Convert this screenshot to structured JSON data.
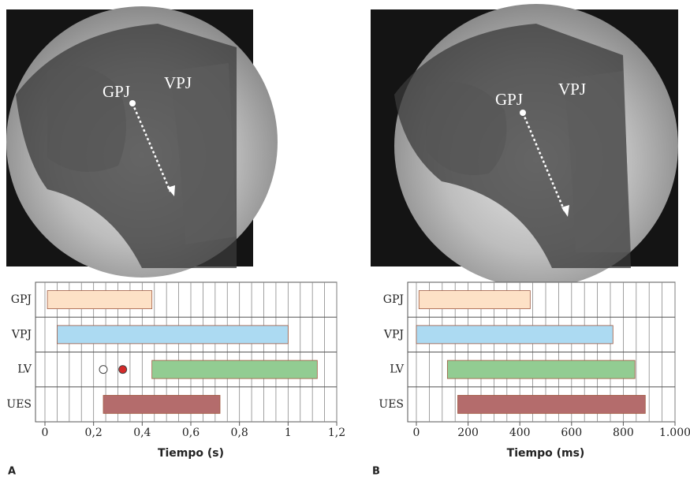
{
  "panels": [
    "A",
    "B"
  ],
  "images": [
    {
      "annotations": [
        "GPJ",
        "VPJ"
      ]
    },
    {
      "annotations": [
        "GPJ",
        "VPJ"
      ]
    }
  ],
  "chart_data": [
    {
      "type": "gantt",
      "x_label": "Tiempo (s)",
      "categories": [
        "GPJ",
        "VPJ",
        "LV",
        "UES"
      ],
      "start": [
        0.01,
        0.05,
        0.44,
        0.24
      ],
      "end": [
        0.44,
        1.0,
        1.12,
        0.72
      ],
      "colors": [
        "#fde1c6",
        "#acdaf2",
        "#92cc92",
        "#b46c6c"
      ],
      "markers": [
        null,
        null,
        [
          0.24,
          0.32
        ],
        null
      ],
      "marker_colors": [
        "#ffffff",
        "#d42a2a"
      ],
      "xlim": [
        0,
        1.2
      ],
      "xticks": [
        0,
        {
          "value": 0.2,
          "label": "0,2"
        },
        {
          "value": 0.4,
          "label": "0,4"
        },
        {
          "value": 0.6,
          "label": "0,6"
        },
        {
          "value": 0.8,
          "label": "0,8"
        },
        1,
        {
          "value": 1.2,
          "label": "1,2"
        }
      ],
      "grid_step": 0.05
    },
    {
      "type": "gantt",
      "x_label": "Tiempo (ms)",
      "categories": [
        "GPJ",
        "VPJ",
        "LV",
        "UES"
      ],
      "start": [
        10,
        0,
        120,
        160
      ],
      "end": [
        440,
        760,
        845,
        885
      ],
      "colors": [
        "#fde1c6",
        "#acdaf2",
        "#92cc92",
        "#b46c6c"
      ],
      "xlim": [
        0,
        1000
      ],
      "xticks": [
        0,
        200,
        400,
        600,
        800,
        {
          "value": 1000,
          "label": "1.000"
        }
      ],
      "grid_step": 50
    }
  ]
}
